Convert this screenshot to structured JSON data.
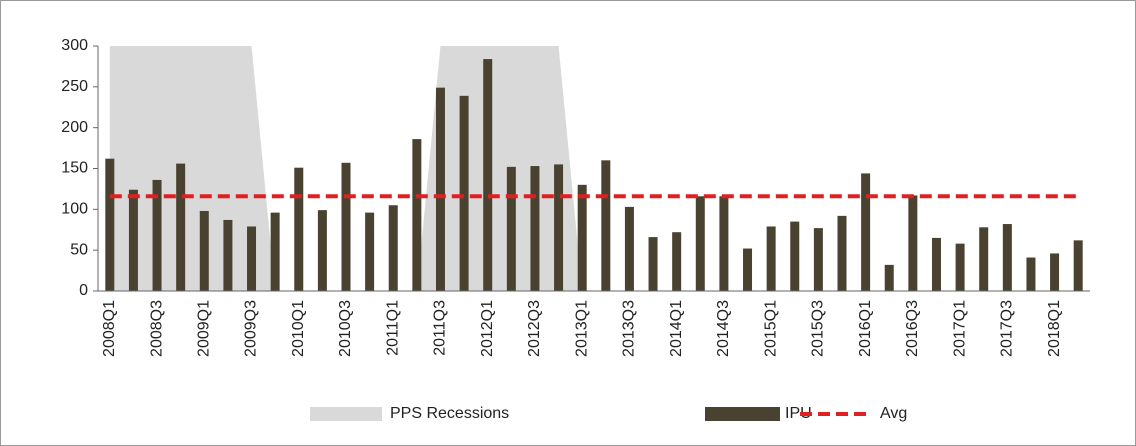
{
  "chart_data": {
    "type": "bar",
    "categories": [
      "2008Q1",
      null,
      "2008Q3",
      null,
      "2009Q1",
      null,
      "2009Q3",
      null,
      "2010Q1",
      null,
      "2010Q3",
      null,
      "2011Q1",
      null,
      "2011Q3",
      null,
      "2012Q1",
      null,
      "2012Q3",
      null,
      "2013Q1",
      null,
      "2013Q3",
      null,
      "2014Q1",
      null,
      "2014Q3",
      null,
      "2015Q1",
      null,
      "2015Q3",
      null,
      "2016Q1",
      null,
      "2016Q3",
      null,
      "2017Q1",
      null,
      "2017Q3",
      null,
      "2018Q1",
      null
    ],
    "series": [
      {
        "name": "PPS Recessions",
        "type": "area",
        "color": "#d9d9d9",
        "values": [
          300,
          300,
          300,
          300,
          300,
          300,
          300,
          0,
          0,
          0,
          0,
          0,
          0,
          0,
          300,
          300,
          300,
          300,
          300,
          300,
          0,
          0,
          0,
          0,
          0,
          0,
          0,
          0,
          0,
          0,
          0,
          0,
          0,
          0,
          0,
          0,
          0,
          0,
          0,
          0,
          0,
          0
        ]
      },
      {
        "name": "IPU",
        "type": "bar",
        "color": "#4a4230",
        "values": [
          162,
          124,
          136,
          156,
          98,
          87,
          79,
          96,
          151,
          99,
          157,
          96,
          105,
          186,
          249,
          239,
          284,
          152,
          153,
          155,
          130,
          160,
          103,
          66,
          72,
          116,
          116,
          52,
          79,
          85,
          77,
          92,
          144,
          32,
          117,
          65,
          58,
          78,
          82,
          41,
          46,
          62
        ]
      },
      {
        "name": "Avg",
        "type": "line",
        "color": "#e02020",
        "values": [
          116,
          116,
          116,
          116,
          116,
          116,
          116,
          116,
          116,
          116,
          116,
          116,
          116,
          116,
          116,
          116,
          116,
          116,
          116,
          116,
          116,
          116,
          116,
          116,
          116,
          116,
          116,
          116,
          116,
          116,
          116,
          116,
          116,
          116,
          116,
          116,
          116,
          116,
          116,
          116,
          116,
          116
        ]
      }
    ],
    "ylim": [
      0,
      300
    ],
    "yticks": [
      0,
      50,
      100,
      150,
      200,
      250,
      300
    ],
    "legend": "bottom"
  }
}
